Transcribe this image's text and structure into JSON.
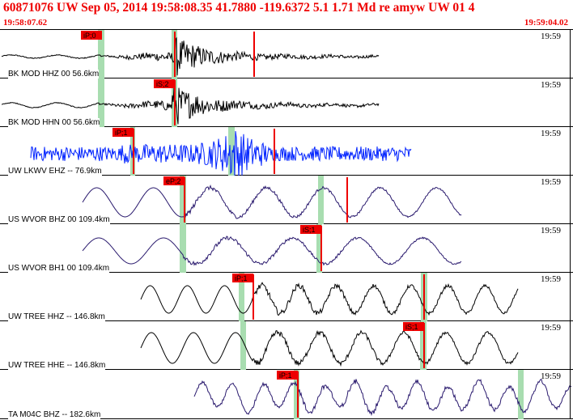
{
  "header": {
    "title": "60871076 UW Sep 05, 2014 19:58:08.35   41.7880 -119.6372  5.1 1.71 Md re amyw UW 01   4",
    "time_start": "19:58:07.62",
    "time_end": "19:59:04.02"
  },
  "colors": {
    "header_text": "#ee0000",
    "pick_red": "#ee0000",
    "window_green": "#a8ddb0",
    "trace_black": "#000000",
    "trace_blue": "#0022ff",
    "trace_purple": "#2a1a6e"
  },
  "panels": [
    {
      "station": "BK MOD HHZ 00 56.6km",
      "time_label": "19:59",
      "pick": "iP;0",
      "trace_color": "trace_black"
    },
    {
      "station": "BK MOD HHN 00 56.6km",
      "time_label": "19:59",
      "pick": "iS;2",
      "trace_color": "trace_black"
    },
    {
      "station": "UW LKWV EHZ -- 76.9km",
      "time_label": "19:59",
      "pick": "iP;1",
      "trace_color": "trace_blue"
    },
    {
      "station": "US WVOR BHZ 00 109.4km",
      "time_label": "19:59",
      "pick": "eP;2",
      "trace_color": "trace_purple"
    },
    {
      "station": "US WVOR BH1 00 109.4km",
      "time_label": "19:59",
      "pick": "iS;1",
      "trace_color": "trace_purple"
    },
    {
      "station": "UW TREE HHZ -- 146.8km",
      "time_label": "19:59",
      "pick": "iP;1",
      "trace_color": "trace_black"
    },
    {
      "station": "UW TREE HHE -- 146.8km",
      "time_label": "19:59",
      "pick": "iS;1",
      "trace_color": "trace_black"
    },
    {
      "station": "TA M04C BHZ -- 182.6km",
      "time_label": "19:59",
      "pick": "iP;1",
      "trace_color": "trace_purple"
    }
  ]
}
